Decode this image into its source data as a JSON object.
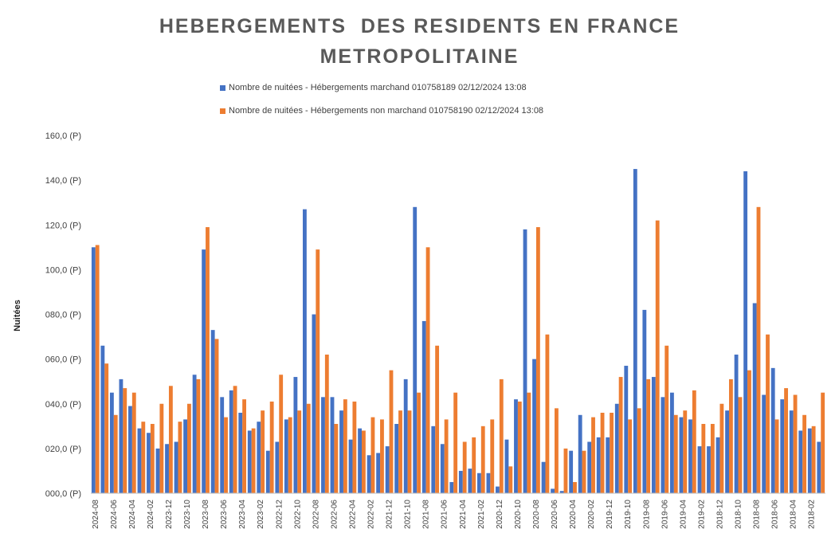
{
  "chart_data": {
    "type": "bar",
    "title_lines": [
      "HEBERGEMENTS  DES RESIDENTS EN FRANCE",
      "METROPOLITAINE"
    ],
    "ylabel": "Nuitées",
    "xlabel": "",
    "ylim": [
      0,
      160
    ],
    "y_ticks": [
      0,
      20,
      40,
      60,
      80,
      100,
      120,
      140,
      160
    ],
    "y_tick_labels": [
      "000,0 (P)",
      "020,0 (P)",
      "040,0 (P)",
      "060,0 (P)",
      "080,0 (P)",
      "100,0 (P)",
      "120,0 (P)",
      "140,0 (P)",
      "160,0 (P)"
    ],
    "grid": false,
    "legend_position": "top",
    "x_tick_labels": [
      "2024-08",
      "2024-06",
      "2024-04",
      "2024-02",
      "2023-12",
      "2023-10",
      "2023-08",
      "2023-06",
      "2023-04",
      "2023-02",
      "2022-12",
      "2022-10",
      "2022-08",
      "2022-06",
      "2022-04",
      "2022-02",
      "2021-12",
      "2021-10",
      "2021-08",
      "2021-06",
      "2021-04",
      "2021-02",
      "2020-12",
      "2020-10",
      "2020-08",
      "2020-06",
      "2020-04",
      "2020-02",
      "2019-12",
      "2019-10",
      "2019-08",
      "2019-06",
      "2019-04",
      "2019-02",
      "2018-12",
      "2018-10",
      "2018-08",
      "2018-06",
      "2018-04",
      "2018-02"
    ],
    "categories": [
      "2024-08",
      "2024-07",
      "2024-06",
      "2024-05",
      "2024-04",
      "2024-03",
      "2024-02",
      "2024-01",
      "2023-12",
      "2023-11",
      "2023-10",
      "2023-09",
      "2023-08",
      "2023-07",
      "2023-06",
      "2023-05",
      "2023-04",
      "2023-03",
      "2023-02",
      "2023-01",
      "2022-12",
      "2022-11",
      "2022-10",
      "2022-09",
      "2022-08",
      "2022-07",
      "2022-06",
      "2022-05",
      "2022-04",
      "2022-03",
      "2022-02",
      "2022-01",
      "2021-12",
      "2021-11",
      "2021-10",
      "2021-09",
      "2021-08",
      "2021-07",
      "2021-06",
      "2021-05",
      "2021-04",
      "2021-03",
      "2021-02",
      "2021-01",
      "2020-12",
      "2020-11",
      "2020-10",
      "2020-09",
      "2020-08",
      "2020-07",
      "2020-06",
      "2020-05",
      "2020-04",
      "2020-03",
      "2020-02",
      "2020-01",
      "2019-12",
      "2019-11",
      "2019-10",
      "2019-09",
      "2019-08",
      "2019-07",
      "2019-06",
      "2019-05",
      "2019-04",
      "2019-03",
      "2019-02",
      "2019-01",
      "2018-12",
      "2018-11",
      "2018-10",
      "2018-09",
      "2018-08",
      "2018-07",
      "2018-06",
      "2018-05",
      "2018-04",
      "2018-03",
      "2018-02",
      "2018-01"
    ],
    "series": [
      {
        "name": "Nombre de nuitées - Hébergements marchand 010758189 02/12/2024 13:08",
        "color": "#4472c4",
        "values": [
          110,
          66,
          45,
          51,
          39,
          29,
          27,
          20,
          22,
          23,
          33,
          53,
          109,
          73,
          43,
          46,
          36,
          28,
          32,
          19,
          23,
          33,
          52,
          127,
          80,
          43,
          43,
          37,
          24,
          29,
          17,
          18,
          21,
          31,
          51,
          128,
          77,
          30,
          22,
          5,
          10,
          11,
          9,
          9,
          3,
          24,
          42,
          118,
          60,
          14,
          2,
          1,
          19,
          35,
          23,
          25,
          25,
          40,
          57,
          145,
          82,
          52,
          43,
          45,
          34,
          33,
          21,
          21,
          25,
          37,
          62,
          144,
          85,
          44,
          56,
          42,
          37,
          28,
          29,
          23
        ],
        "_v": [
          110,
          66,
          45,
          51,
          39,
          29,
          27,
          20,
          22,
          23,
          33,
          53,
          109,
          73,
          43,
          46,
          36,
          28,
          32,
          19,
          23,
          33,
          52,
          127,
          80,
          43,
          43,
          37,
          24,
          29,
          17,
          18,
          21,
          31,
          51,
          128,
          77,
          30,
          22,
          5,
          10,
          11,
          9,
          9,
          3,
          24,
          42,
          118,
          60,
          14,
          2,
          1,
          19,
          35,
          23,
          25,
          25,
          40,
          57,
          145,
          82,
          52,
          43,
          45,
          34,
          33,
          21,
          21,
          25,
          37,
          62,
          144,
          85,
          44,
          56,
          42,
          37,
          28,
          29,
          23
        ]
      },
      {
        "name": "Nombre de nuitées - Hébergements non marchand 010758190 02/12/2024 13:08",
        "color": "#ed7d31",
        "values": [
          111,
          58,
          35,
          47,
          45,
          32,
          31,
          40,
          48,
          32,
          40,
          51,
          119,
          69,
          34,
          48,
          42,
          29,
          37,
          41,
          53,
          34,
          37,
          40,
          109,
          62,
          31,
          42,
          41,
          28,
          34,
          33,
          55,
          37,
          37,
          45,
          110,
          66,
          33,
          45,
          23,
          25,
          30,
          33,
          51,
          12,
          41,
          45,
          119,
          71,
          38,
          20,
          5,
          19,
          34,
          36,
          36,
          52,
          33,
          38,
          51,
          122,
          66,
          35,
          37,
          46,
          31,
          31,
          40,
          51,
          43,
          55,
          128,
          71,
          33,
          47,
          44,
          35,
          30,
          45
        ]
      }
    ]
  }
}
